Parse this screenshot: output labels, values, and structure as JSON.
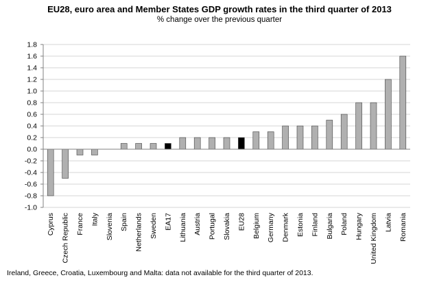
{
  "header": {
    "title": "EU28, euro area and Member States GDP growth rates in the third quarter of 2013",
    "subtitle": "% change over the previous quarter"
  },
  "footnote": "Ireland, Greece, Croatia, Luxembourg and Malta: data not available for the third quarter of 2013.",
  "colors": {
    "bar": "#b0b0b0",
    "highlight": "#000000",
    "grid": "#d4d4d4"
  },
  "chart_data": {
    "type": "bar",
    "title": "EU28, euro area and Member States GDP growth rates in the third quarter of 2013",
    "subtitle": "% change over the previous quarter",
    "xlabel": "",
    "ylabel": "",
    "ylim": [
      -1.0,
      1.8
    ],
    "yticks": [
      "1.8",
      "1.6",
      "1.4",
      "1.2",
      "1.0",
      "0.8",
      "0.6",
      "0.4",
      "0.2",
      "0.0",
      "-0.2",
      "-0.4",
      "-0.6",
      "-0.8",
      "-1.0"
    ],
    "grid": true,
    "categories": [
      "Cyprus",
      "Czech Republic",
      "France",
      "Italy",
      "Slovenia",
      "Spain",
      "Netherlands",
      "Sweden",
      "EA17",
      "Lithuania",
      "Austria",
      "Portugal",
      "Slovakia",
      "EU28",
      "Belgium",
      "Germany",
      "Denmark",
      "Estonia",
      "Finland",
      "Bulgaria",
      "Poland",
      "Hungary",
      "United Kingdom",
      "Latvia",
      "Romania"
    ],
    "values": [
      -0.8,
      -0.5,
      -0.1,
      -0.1,
      0.0,
      0.1,
      0.1,
      0.1,
      0.1,
      0.2,
      0.2,
      0.2,
      0.2,
      0.2,
      0.3,
      0.3,
      0.4,
      0.4,
      0.4,
      0.5,
      0.6,
      0.8,
      0.8,
      1.2,
      1.6
    ],
    "highlighted": [
      "EA17",
      "EU28"
    ]
  }
}
